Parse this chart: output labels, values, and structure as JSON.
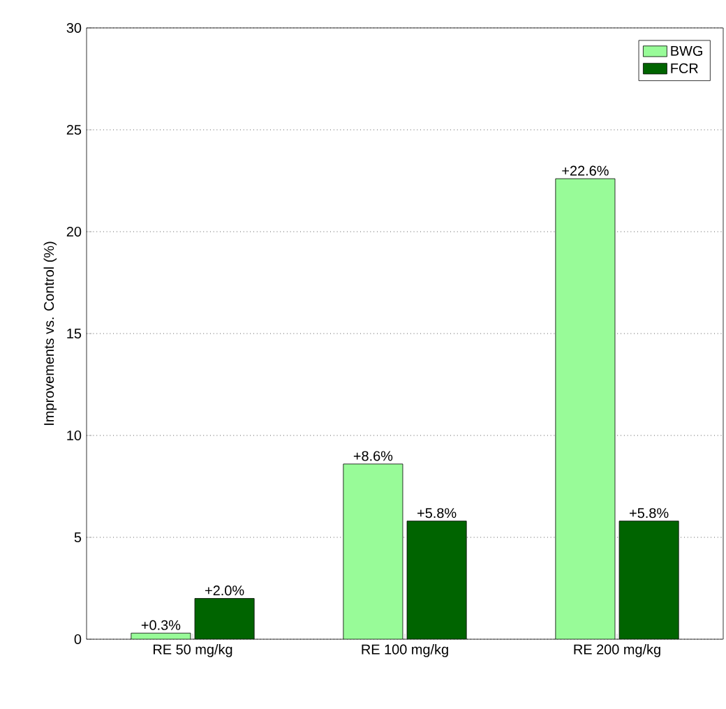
{
  "chart_data": {
    "type": "bar",
    "ylabel": "Improvements vs. Control (%)",
    "categories": [
      "RE 50 mg/kg",
      "RE 100 mg/kg",
      "RE 200 mg/kg"
    ],
    "series": [
      {
        "name": "BWG",
        "color": "#98fb98",
        "values": [
          0.3,
          8.6,
          22.6
        ],
        "value_labels": [
          "+0.3%",
          "+8.6%",
          "+22.6%"
        ]
      },
      {
        "name": "FCR",
        "color": "#006400",
        "values": [
          2.0,
          5.8,
          5.8
        ],
        "value_labels": [
          "+2.0%",
          "+5.8%",
          "+5.8%"
        ]
      }
    ],
    "ylim": [
      0,
      30
    ],
    "yticks": [
      0,
      5,
      10,
      15,
      20,
      25,
      30
    ],
    "grid": "y",
    "legend": "top right"
  }
}
